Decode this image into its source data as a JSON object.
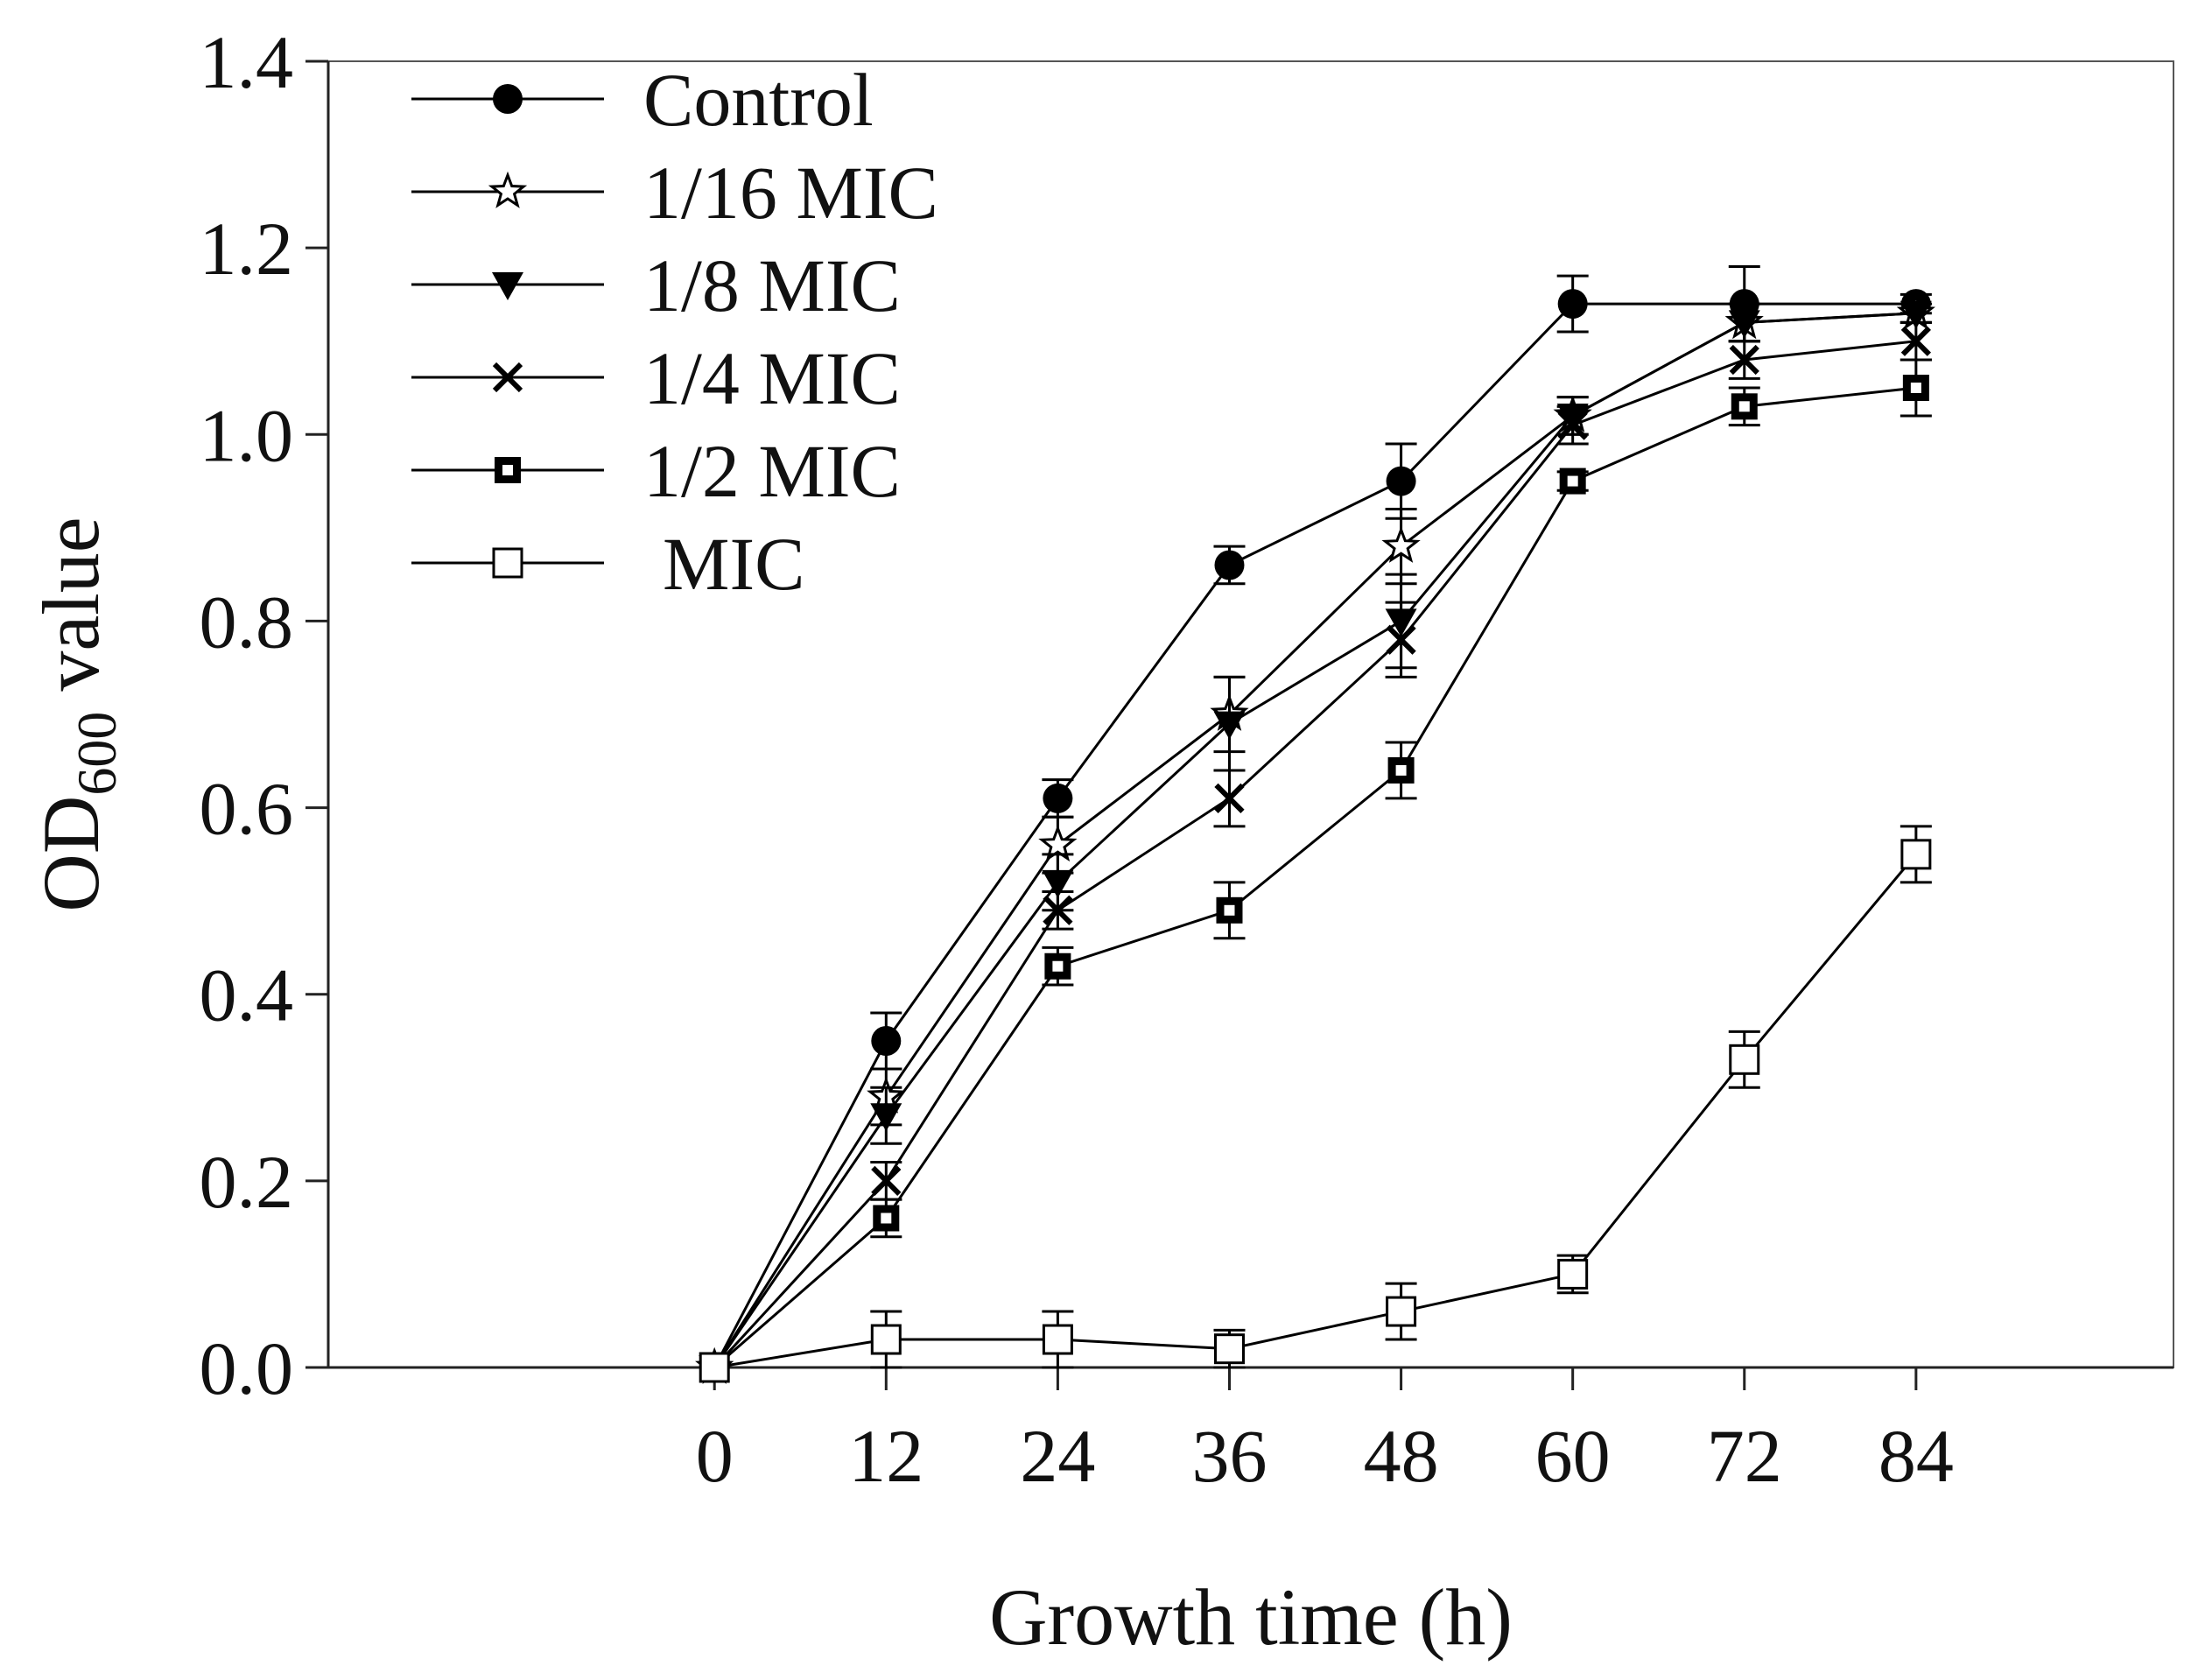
{
  "chart_data": {
    "type": "line",
    "title": "",
    "xlabel": "Growth time (h)",
    "ylabel_main": "OD",
    "ylabel_sub": "600",
    "ylabel_rest": " value",
    "xlim": [
      -27,
      102
    ],
    "ylim": [
      0.0,
      1.4
    ],
    "x": [
      0,
      12,
      24,
      36,
      48,
      60,
      72,
      84
    ],
    "x_tick_labels": [
      "0",
      "12",
      "24",
      "36",
      "48",
      "60",
      "72",
      "84"
    ],
    "y_ticks": [
      0.0,
      0.2,
      0.4,
      0.6,
      0.8,
      1.0,
      1.2,
      1.4
    ],
    "y_tick_labels": [
      "0.0",
      "0.2",
      "0.4",
      "0.6",
      "0.8",
      "1.0",
      "1.2",
      "1.4"
    ],
    "grid": false,
    "legend_position": "top-left",
    "series": [
      {
        "name": "Control",
        "marker": "filled-circle",
        "values": [
          0.0,
          0.35,
          0.61,
          0.86,
          0.95,
          1.14,
          1.14,
          1.14
        ],
        "errors": [
          0.0,
          0.03,
          0.02,
          0.02,
          0.04,
          0.03,
          0.04,
          0.01
        ]
      },
      {
        "name": "1/16 MIC",
        "marker": "open-star",
        "values": [
          0.0,
          0.29,
          0.56,
          0.7,
          0.88,
          1.02,
          1.12,
          1.13
        ],
        "errors": [
          0.0,
          0.03,
          0.03,
          0.04,
          0.04,
          0.02,
          0.02,
          0.01
        ]
      },
      {
        "name": "1/8 MIC",
        "marker": "filled-triangle-down",
        "values": [
          0.0,
          0.27,
          0.52,
          0.69,
          0.8,
          1.02,
          1.12,
          1.13
        ],
        "errors": [
          0.0,
          0.03,
          0.03,
          0.05,
          0.05,
          0.02,
          0.02,
          0.01
        ]
      },
      {
        "name": "1/4 MIC",
        "marker": "x-cross",
        "values": [
          0.0,
          0.2,
          0.49,
          0.61,
          0.78,
          1.01,
          1.08,
          1.1
        ],
        "errors": [
          0.0,
          0.02,
          0.02,
          0.03,
          0.04,
          0.02,
          0.02,
          0.02
        ]
      },
      {
        "name": "1/2 MIC",
        "marker": "dotted-square",
        "values": [
          0.0,
          0.16,
          0.43,
          0.49,
          0.64,
          0.95,
          1.03,
          1.05
        ],
        "errors": [
          0.0,
          0.02,
          0.02,
          0.03,
          0.03,
          0.01,
          0.02,
          0.03
        ]
      },
      {
        "name": "MIC",
        "marker": "open-square",
        "values": [
          0.0,
          0.03,
          0.03,
          0.02,
          0.06,
          0.1,
          0.33,
          0.55
        ],
        "errors": [
          0.0,
          0.03,
          0.03,
          0.02,
          0.03,
          0.02,
          0.03,
          0.03
        ]
      }
    ]
  }
}
